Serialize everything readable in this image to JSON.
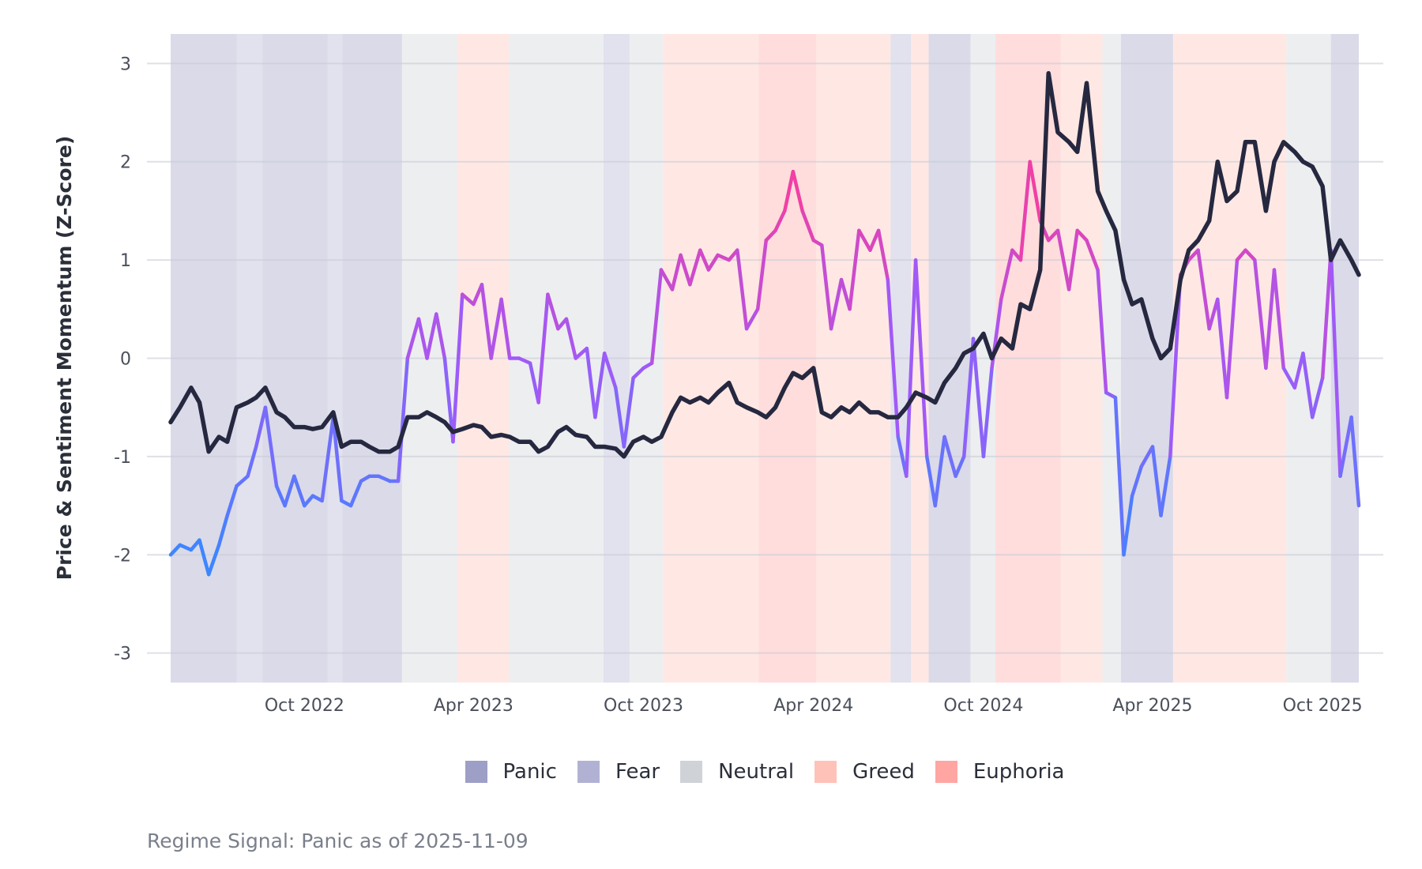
{
  "chart_data": {
    "type": "line",
    "ylabel": "Price & Sentiment Momentum (Z-Score)",
    "ylim": [
      -3.3,
      3.3
    ],
    "xlim": [
      "2022-05-10",
      "2025-11-09"
    ],
    "yticks": [
      3,
      2,
      1,
      0,
      -1,
      -2,
      -3
    ],
    "xticks": [
      {
        "date": "2022-10-01",
        "label": "Oct 2022"
      },
      {
        "date": "2023-04-01",
        "label": "Apr 2023"
      },
      {
        "date": "2023-10-01",
        "label": "Oct 2023"
      },
      {
        "date": "2024-04-01",
        "label": "Apr 2024"
      },
      {
        "date": "2024-10-01",
        "label": "Oct 2024"
      },
      {
        "date": "2025-04-01",
        "label": "Apr 2025"
      },
      {
        "date": "2025-10-01",
        "label": "Oct 2025"
      }
    ],
    "grid": true,
    "legend_placement": "bottom",
    "colors": {
      "price": "#262840",
      "sentiment_low": "#3d86ff",
      "sentiment_mid": "#a259f7",
      "sentiment_high": "#ff3a96"
    },
    "legend": [
      {
        "label": "Panic",
        "color": "#9e9fc6"
      },
      {
        "label": "Fear",
        "color": "#b1b2d3"
      },
      {
        "label": "Neutral",
        "color": "#cfd3d8"
      },
      {
        "label": "Greed",
        "color": "#ffc2b8"
      },
      {
        "label": "Euphoria",
        "color": "#ffa6a3"
      }
    ],
    "regimes": [
      {
        "start": "2022-05-10",
        "end": "2022-07-20",
        "regime": "Panic"
      },
      {
        "start": "2022-07-20",
        "end": "2022-08-17",
        "regime": "Fear"
      },
      {
        "start": "2022-08-17",
        "end": "2022-10-26",
        "regime": "Panic"
      },
      {
        "start": "2022-10-26",
        "end": "2022-11-11",
        "regime": "Fear"
      },
      {
        "start": "2022-11-11",
        "end": "2023-01-14",
        "regime": "Panic"
      },
      {
        "start": "2023-01-14",
        "end": "2023-03-15",
        "regime": "Neutral"
      },
      {
        "start": "2023-03-15",
        "end": "2023-05-09",
        "regime": "Greed"
      },
      {
        "start": "2023-05-09",
        "end": "2023-08-19",
        "regime": "Neutral"
      },
      {
        "start": "2023-08-19",
        "end": "2023-09-16",
        "regime": "Fear"
      },
      {
        "start": "2023-09-16",
        "end": "2023-10-22",
        "regime": "Neutral"
      },
      {
        "start": "2023-10-22",
        "end": "2024-02-02",
        "regime": "Greed"
      },
      {
        "start": "2024-02-02",
        "end": "2024-04-04",
        "regime": "Euphoria"
      },
      {
        "start": "2024-04-04",
        "end": "2024-06-23",
        "regime": "Greed"
      },
      {
        "start": "2024-06-23",
        "end": "2024-07-15",
        "regime": "Fear"
      },
      {
        "start": "2024-07-15",
        "end": "2024-08-03",
        "regime": "Greed"
      },
      {
        "start": "2024-08-03",
        "end": "2024-09-17",
        "regime": "Panic"
      },
      {
        "start": "2024-09-17",
        "end": "2024-10-14",
        "regime": "Neutral"
      },
      {
        "start": "2024-10-14",
        "end": "2024-12-23",
        "regime": "Euphoria"
      },
      {
        "start": "2024-12-23",
        "end": "2025-02-06",
        "regime": "Greed"
      },
      {
        "start": "2025-02-06",
        "end": "2025-02-26",
        "regime": "Neutral"
      },
      {
        "start": "2025-02-26",
        "end": "2025-04-23",
        "regime": "Panic"
      },
      {
        "start": "2025-04-23",
        "end": "2025-08-23",
        "regime": "Greed"
      },
      {
        "start": "2025-08-23",
        "end": "2025-10-10",
        "regime": "Neutral"
      },
      {
        "start": "2025-10-10",
        "end": "2025-11-09",
        "regime": "Panic"
      }
    ],
    "dates": [
      "2022-05-10",
      "2022-05-20",
      "2022-06-01",
      "2022-06-10",
      "2022-06-20",
      "2022-07-01",
      "2022-07-10",
      "2022-07-20",
      "2022-08-01",
      "2022-08-10",
      "2022-08-20",
      "2022-09-01",
      "2022-09-10",
      "2022-09-20",
      "2022-10-01",
      "2022-10-10",
      "2022-10-20",
      "2022-11-01",
      "2022-11-10",
      "2022-11-20",
      "2022-12-01",
      "2022-12-10",
      "2022-12-20",
      "2023-01-01",
      "2023-01-10",
      "2023-01-20",
      "2023-02-01",
      "2023-02-10",
      "2023-02-20",
      "2023-03-01",
      "2023-03-10",
      "2023-03-20",
      "2023-04-01",
      "2023-04-10",
      "2023-04-20",
      "2023-05-01",
      "2023-05-10",
      "2023-05-20",
      "2023-06-01",
      "2023-06-10",
      "2023-06-20",
      "2023-07-01",
      "2023-07-10",
      "2023-07-20",
      "2023-08-01",
      "2023-08-10",
      "2023-08-20",
      "2023-09-01",
      "2023-09-10",
      "2023-09-20",
      "2023-10-01",
      "2023-10-10",
      "2023-10-20",
      "2023-11-01",
      "2023-11-10",
      "2023-11-20",
      "2023-12-01",
      "2023-12-10",
      "2023-12-20",
      "2024-01-01",
      "2024-01-10",
      "2024-01-20",
      "2024-02-01",
      "2024-02-10",
      "2024-02-20",
      "2024-03-01",
      "2024-03-10",
      "2024-03-20",
      "2024-04-01",
      "2024-04-10",
      "2024-04-20",
      "2024-05-01",
      "2024-05-10",
      "2024-05-20",
      "2024-06-01",
      "2024-06-10",
      "2024-06-20",
      "2024-07-01",
      "2024-07-10",
      "2024-07-20",
      "2024-08-01",
      "2024-08-10",
      "2024-08-20",
      "2024-09-01",
      "2024-09-10",
      "2024-09-20",
      "2024-10-01",
      "2024-10-10",
      "2024-10-20",
      "2024-11-01",
      "2024-11-10",
      "2024-11-20",
      "2024-12-01",
      "2024-12-10",
      "2024-12-20",
      "2025-01-01",
      "2025-01-10",
      "2025-01-20",
      "2025-02-01",
      "2025-02-10",
      "2025-02-20",
      "2025-03-01",
      "2025-03-10",
      "2025-03-20",
      "2025-04-01",
      "2025-04-10",
      "2025-04-20",
      "2025-05-01",
      "2025-05-10",
      "2025-05-20",
      "2025-06-01",
      "2025-06-10",
      "2025-06-20",
      "2025-07-01",
      "2025-07-10",
      "2025-07-20",
      "2025-08-01",
      "2025-08-10",
      "2025-08-20",
      "2025-09-01",
      "2025-09-10",
      "2025-09-20",
      "2025-10-01",
      "2025-10-10",
      "2025-10-20",
      "2025-11-01",
      "2025-11-09"
    ],
    "series": [
      {
        "key": "price",
        "values": [
          -0.65,
          -0.5,
          -0.3,
          -0.45,
          -0.95,
          -0.8,
          -0.85,
          -0.5,
          -0.45,
          -0.4,
          -0.3,
          -0.55,
          -0.6,
          -0.7,
          -0.7,
          -0.72,
          -0.7,
          -0.55,
          -0.9,
          -0.85,
          -0.85,
          -0.9,
          -0.95,
          -0.95,
          -0.9,
          -0.6,
          -0.6,
          -0.55,
          -0.6,
          -0.65,
          -0.75,
          -0.72,
          -0.68,
          -0.7,
          -0.8,
          -0.78,
          -0.8,
          -0.85,
          -0.85,
          -0.95,
          -0.9,
          -0.75,
          -0.7,
          -0.78,
          -0.8,
          -0.9,
          -0.9,
          -0.92,
          -1.0,
          -0.85,
          -0.8,
          -0.85,
          -0.8,
          -0.55,
          -0.4,
          -0.45,
          -0.4,
          -0.45,
          -0.35,
          -0.25,
          -0.45,
          -0.5,
          -0.55,
          -0.6,
          -0.5,
          -0.3,
          -0.15,
          -0.2,
          -0.1,
          -0.55,
          -0.6,
          -0.5,
          -0.55,
          -0.45,
          -0.55,
          -0.55,
          -0.6,
          -0.6,
          -0.5,
          -0.35,
          -0.4,
          -0.45,
          -0.25,
          -0.1,
          0.05,
          0.1,
          0.25,
          0.0,
          0.2,
          0.1,
          0.55,
          0.5,
          0.9,
          2.9,
          2.3,
          2.2,
          2.1,
          2.8,
          1.7,
          1.5,
          1.3,
          0.8,
          0.55,
          0.6,
          0.2,
          0.0,
          0.1,
          0.8,
          1.1,
          1.2,
          1.4,
          2.0,
          1.6,
          1.7,
          2.2,
          2.2,
          1.5,
          2.0,
          2.2,
          2.1,
          2.0,
          1.95,
          1.75,
          1.0,
          1.2,
          1.0,
          0.85
        ]
      },
      {
        "key": "sentiment",
        "values": [
          -2.0,
          -1.9,
          -1.95,
          -1.85,
          -2.2,
          -1.9,
          -1.6,
          -1.3,
          -1.2,
          -0.9,
          -0.5,
          -1.3,
          -1.5,
          -1.2,
          -1.5,
          -1.4,
          -1.45,
          -0.6,
          -1.45,
          -1.5,
          -1.25,
          -1.2,
          -1.2,
          -1.25,
          -1.25,
          0.0,
          0.4,
          0.0,
          0.45,
          0.0,
          -0.85,
          0.65,
          0.55,
          0.75,
          0.0,
          0.6,
          0.0,
          0.0,
          -0.05,
          -0.45,
          0.65,
          0.3,
          0.4,
          0.0,
          0.1,
          -0.6,
          0.05,
          -0.3,
          -0.9,
          -0.2,
          -0.1,
          -0.05,
          0.9,
          0.7,
          1.05,
          0.75,
          1.1,
          0.9,
          1.05,
          1.0,
          1.1,
          0.3,
          0.5,
          1.2,
          1.3,
          1.5,
          1.9,
          1.5,
          1.2,
          1.15,
          0.3,
          0.8,
          0.5,
          1.3,
          1.1,
          1.3,
          0.8,
          -0.8,
          -1.2,
          1.0,
          -1.0,
          -1.5,
          -0.8,
          -1.2,
          -1.0,
          0.2,
          -1.0,
          -0.1,
          0.6,
          1.1,
          1.0,
          2.0,
          1.4,
          1.2,
          1.3,
          0.7,
          1.3,
          1.2,
          0.9,
          -0.35,
          -0.4,
          -2.0,
          -1.4,
          -1.1,
          -0.9,
          -1.6,
          -1.0,
          0.85,
          1.0,
          1.1,
          0.3,
          0.6,
          -0.4,
          1.0,
          1.1,
          1.0,
          -0.1,
          0.9,
          -0.1,
          -0.3,
          0.05,
          -0.6,
          -0.2,
          1.1,
          -1.2,
          -0.6,
          -1.5
        ]
      }
    ]
  },
  "caption": "Regime Signal: Panic as of 2025-11-09"
}
